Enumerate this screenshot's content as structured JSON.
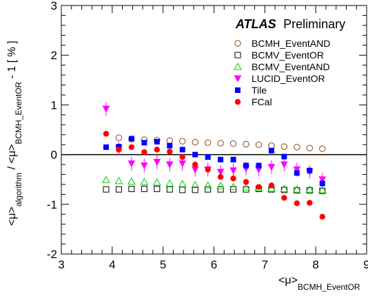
{
  "chart_data": {
    "type": "scatter",
    "title": "",
    "atlas_label": {
      "bold": "ATLAS",
      "normal": "Preliminary"
    },
    "xlabel": {
      "main": "<μ>",
      "sub": "BCMH_EventOR"
    },
    "ylabel": {
      "part1": "<μ>",
      "part1_sub": "algorithm",
      "part2": " / <μ>",
      "part2_sub": "BCMH_EventOR",
      "part3": " - 1 [ % ]"
    },
    "xlim": [
      3,
      9
    ],
    "ylim": [
      -2,
      3
    ],
    "xticks": [
      "3",
      "4",
      "5",
      "6",
      "7",
      "8",
      "9"
    ],
    "yticks": [
      "-2",
      "-1",
      "0",
      "1",
      "2",
      "3"
    ],
    "reference_line_y": 0,
    "legend_position": "top-right",
    "series": [
      {
        "name": "BCMH_EventAND",
        "marker": "open-circle",
        "color": "#8b4513",
        "x": [
          4.13,
          4.38,
          4.63,
          4.88,
          5.13,
          5.38,
          5.63,
          5.88,
          6.13,
          6.38,
          6.63,
          6.88,
          7.13,
          7.38,
          7.63,
          7.88,
          8.13
        ],
        "y": [
          0.34,
          0.31,
          0.3,
          0.29,
          0.28,
          0.27,
          0.25,
          0.24,
          0.23,
          0.22,
          0.21,
          0.2,
          0.18,
          0.16,
          0.15,
          0.13,
          0.12
        ]
      },
      {
        "name": "BCMV_EventOR",
        "marker": "open-square",
        "color": "#000000",
        "x": [
          3.88,
          4.13,
          4.38,
          4.63,
          4.88,
          5.13,
          5.38,
          5.63,
          5.88,
          6.13,
          6.38,
          6.63,
          6.88,
          7.13,
          7.38,
          7.63,
          7.88,
          8.13
        ],
        "y": [
          -0.7,
          -0.7,
          -0.69,
          -0.69,
          -0.69,
          -0.7,
          -0.71,
          -0.71,
          -0.7,
          -0.7,
          -0.7,
          -0.7,
          -0.69,
          -0.7,
          -0.71,
          -0.72,
          -0.72,
          -0.73
        ]
      },
      {
        "name": "BCMV_EventAND",
        "marker": "open-triangle",
        "color": "#00cc00",
        "x": [
          3.88,
          4.13,
          4.38,
          4.63,
          4.88,
          5.13,
          5.38,
          5.63,
          5.88,
          6.13,
          6.38,
          6.63,
          6.88,
          7.13,
          7.38,
          7.63,
          7.88,
          8.13
        ],
        "y": [
          -0.51,
          -0.53,
          -0.54,
          -0.55,
          -0.56,
          -0.58,
          -0.59,
          -0.61,
          -0.62,
          -0.63,
          -0.65,
          -0.66,
          -0.67,
          -0.68,
          -0.69,
          -0.7,
          -0.7,
          -0.71
        ]
      },
      {
        "name": "LUCID_EventOR",
        "marker": "down-triangle",
        "color": "#ff00ff",
        "x": [
          3.88,
          4.13,
          4.38,
          4.63,
          4.88,
          5.13,
          5.38,
          5.63,
          5.88,
          6.13,
          6.38,
          6.63,
          6.88,
          7.13,
          7.38,
          7.63,
          7.88,
          8.13
        ],
        "y": [
          0.92,
          0.12,
          -0.18,
          -0.22,
          -0.15,
          -0.2,
          -0.18,
          -0.3,
          -0.3,
          -0.35,
          -0.32,
          -0.28,
          -0.3,
          -0.25,
          -0.2,
          -0.3,
          -0.35,
          -0.5
        ]
      },
      {
        "name": "Tile",
        "marker": "filled-square",
        "color": "#0000ff",
        "x": [
          3.88,
          4.13,
          4.38,
          4.63,
          4.88,
          5.13,
          5.38,
          5.63,
          5.88,
          6.13,
          6.38,
          6.63,
          6.88,
          7.13,
          7.38,
          7.63,
          7.88,
          8.13
        ],
        "y": [
          0.15,
          0.16,
          0.32,
          0.24,
          0.26,
          0.18,
          0.1,
          0.0,
          -0.05,
          -0.1,
          -0.1,
          -0.22,
          -0.22,
          0.08,
          -0.04,
          -0.37,
          -0.32,
          -0.58
        ]
      },
      {
        "name": "FCal",
        "marker": "filled-circle",
        "color": "#ff0000",
        "x": [
          3.88,
          4.13,
          4.38,
          4.63,
          4.88,
          5.13,
          5.38,
          5.63,
          5.88,
          6.13,
          6.38,
          6.63,
          6.88,
          7.13,
          7.38,
          7.63,
          7.88,
          8.13
        ],
        "y": [
          0.42,
          0.1,
          0.15,
          0.05,
          0.1,
          0.06,
          -0.05,
          -0.2,
          -0.3,
          -0.45,
          -0.48,
          -0.55,
          -0.65,
          -0.62,
          -0.87,
          -0.98,
          -0.97,
          -1.25
        ]
      }
    ]
  }
}
